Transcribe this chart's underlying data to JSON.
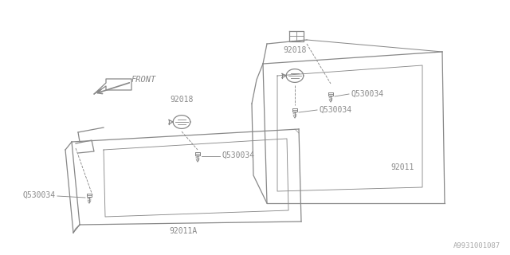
{
  "bg_color": "#ffffff",
  "line_color": "#888888",
  "text_color": "#888888",
  "watermark": "A9931001087",
  "font_size": 7.0,
  "watermark_font_size": 6.5,
  "front_arrow_label": "FRONT",
  "label_92018_top": "92018",
  "label_92018_mid": "92018",
  "label_Q530034_tr": "Q530034",
  "label_Q530034_mr": "Q530034",
  "label_Q530034_ml": "Q530034",
  "label_Q530034_bl": "Q530034",
  "label_92011": "92011",
  "label_92011A": "92011A"
}
